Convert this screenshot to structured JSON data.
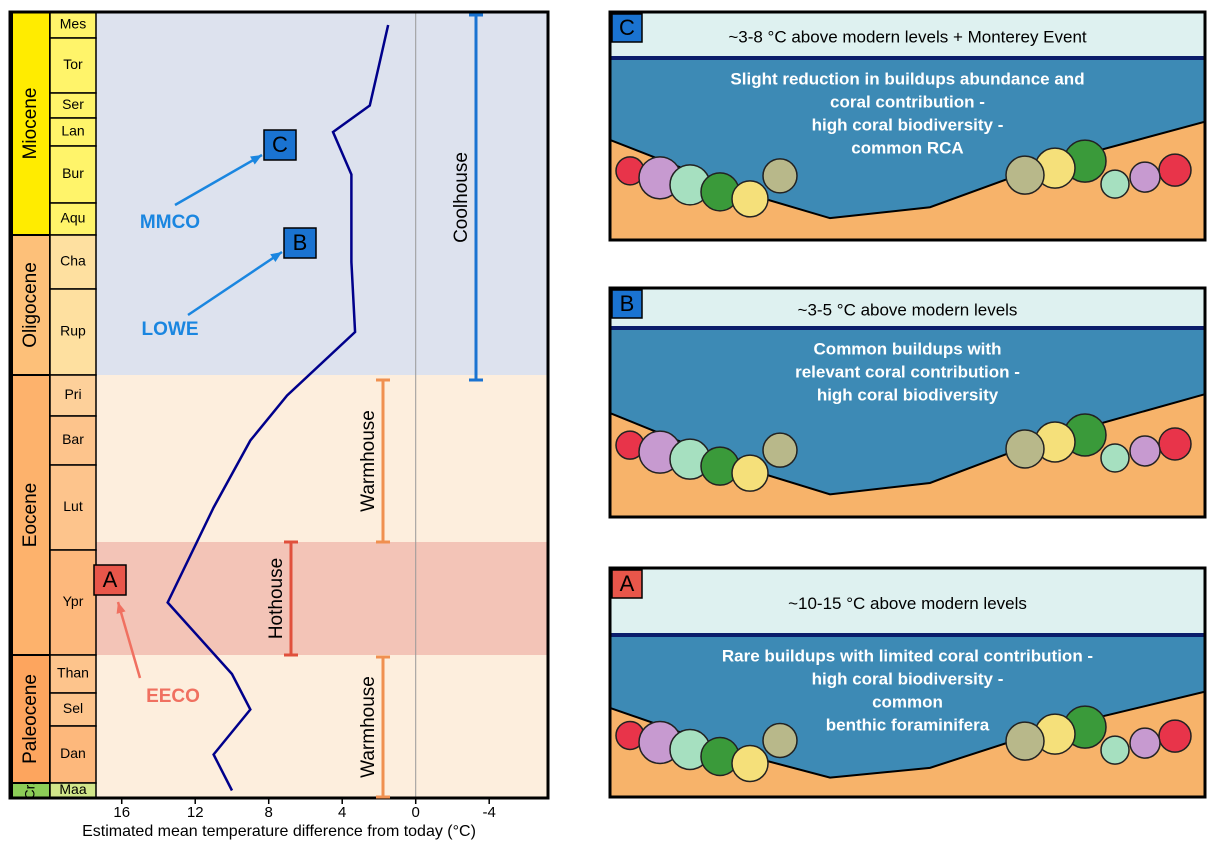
{
  "chart_data": {
    "type": "line",
    "x_label": "Estimated mean temperature difference from today (°C)",
    "xlim": [
      17.4,
      -7.2
    ],
    "xticks": [
      16,
      12,
      8,
      4,
      0,
      -4
    ],
    "epochs": [
      {
        "name": "Miocene",
        "color": "#ffec00"
      },
      {
        "name": "Oligocene",
        "color": "#fdc079"
      },
      {
        "name": "Eocene",
        "color": "#fdb26c"
      },
      {
        "name": "Paleocene",
        "color": "#fda55e"
      },
      {
        "name": "Cr.",
        "color": "#8ccd57"
      }
    ],
    "categories": [
      "Mes",
      "Tor",
      "Ser",
      "Lan",
      "Bur",
      "Aqu",
      "Cha",
      "Rup",
      "Pri",
      "Bar",
      "Lut",
      "Ypr",
      "Than",
      "Sel",
      "Dan",
      "Maa"
    ],
    "series": [
      {
        "color": "#00008b",
        "values": [
          1.5,
          2,
          2.5,
          4.5,
          3.5,
          3.5,
          3.5,
          3.3,
          7,
          9,
          11,
          13.5,
          10,
          9,
          11,
          10
        ]
      }
    ],
    "regimes": [
      {
        "label": "Coolhouse"
      },
      {
        "label": "Warmhouse"
      },
      {
        "label": "Hothouse"
      },
      {
        "label": "Warmhouse"
      }
    ],
    "events": [
      {
        "label": "MMCO",
        "marker": "C"
      },
      {
        "label": "LOWE",
        "marker": "B"
      },
      {
        "label": "EECO",
        "marker": "A"
      }
    ]
  },
  "panels": [
    {
      "badge": "C",
      "title": "~3-8 °C above modern levels + Monterey Event",
      "lines": [
        "Slight reduction in buildups abundance and",
        "coral contribution -",
        "high coral biodiversity -",
        "common RCA"
      ]
    },
    {
      "badge": "B",
      "title": "~3-5 °C above modern levels",
      "lines": [
        "Common buildups with",
        "relevant coral contribution -",
        "high coral biodiversity"
      ]
    },
    {
      "badge": "A",
      "title": "~10-15 °C above modern levels",
      "lines": [
        "Rare buildups with limited coral contribution -",
        "high coral biodiversity -",
        "common",
        "benthic foraminifera"
      ]
    }
  ]
}
